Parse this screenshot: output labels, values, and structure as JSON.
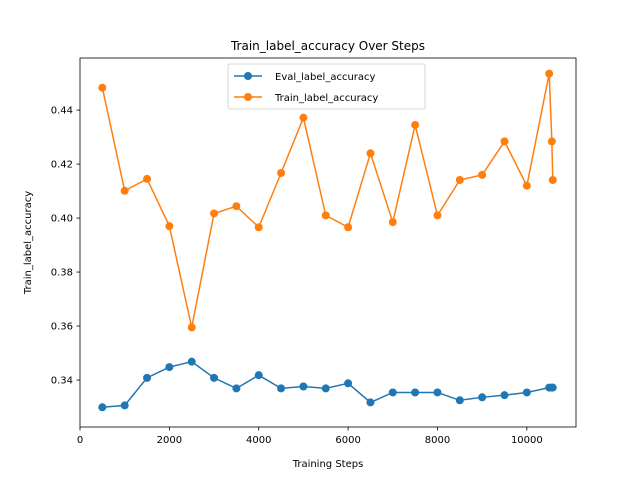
{
  "chart_data": {
    "type": "line",
    "title": "Train_label_accuracy Over Steps",
    "xlabel": "Training Steps",
    "ylabel": "Train_label_accuracy",
    "xlim": [
      0,
      11100
    ],
    "ylim": [
      0.3226,
      0.4593
    ],
    "grid": false,
    "legend_position": "top-center",
    "x_ticks": [
      0,
      2000,
      4000,
      6000,
      8000,
      10000
    ],
    "y_ticks": [
      0.34,
      0.36,
      0.38,
      0.4,
      0.42,
      0.44
    ],
    "x_tick_labels": [
      "0",
      "2000",
      "4000",
      "6000",
      "8000",
      "10000"
    ],
    "y_tick_labels": [
      "0.34",
      "0.36",
      "0.38",
      "0.40",
      "0.42",
      "0.44"
    ],
    "x": [
      500,
      1000,
      1500,
      2000,
      2500,
      3000,
      3500,
      4000,
      4500,
      5000,
      5500,
      6000,
      6500,
      7000,
      7500,
      8000,
      8500,
      9000,
      9500,
      10000,
      10500,
      10560,
      10580
    ],
    "series": [
      {
        "name": "Eval_label_accuracy",
        "color": "#1f77b4",
        "values": [
          0.3299,
          0.3306,
          0.3408,
          0.3448,
          0.3468,
          0.3408,
          0.3369,
          0.3418,
          0.3369,
          0.3376,
          0.3369,
          0.3388,
          0.3317,
          0.3354,
          0.3354,
          0.3354,
          0.3325,
          0.3336,
          0.3344,
          0.3354,
          0.3372,
          0.3372,
          0.3372
        ]
      },
      {
        "name": "Train_label_accuracy",
        "color": "#ff7f0e",
        "values": [
          0.4483,
          0.4101,
          0.4145,
          0.397,
          0.3595,
          0.4017,
          0.4044,
          0.3966,
          0.4167,
          0.4372,
          0.401,
          0.3966,
          0.424,
          0.3985,
          0.4345,
          0.401,
          0.4141,
          0.416,
          0.4284,
          0.412,
          0.4535,
          0.4284,
          0.4141
        ]
      }
    ]
  }
}
